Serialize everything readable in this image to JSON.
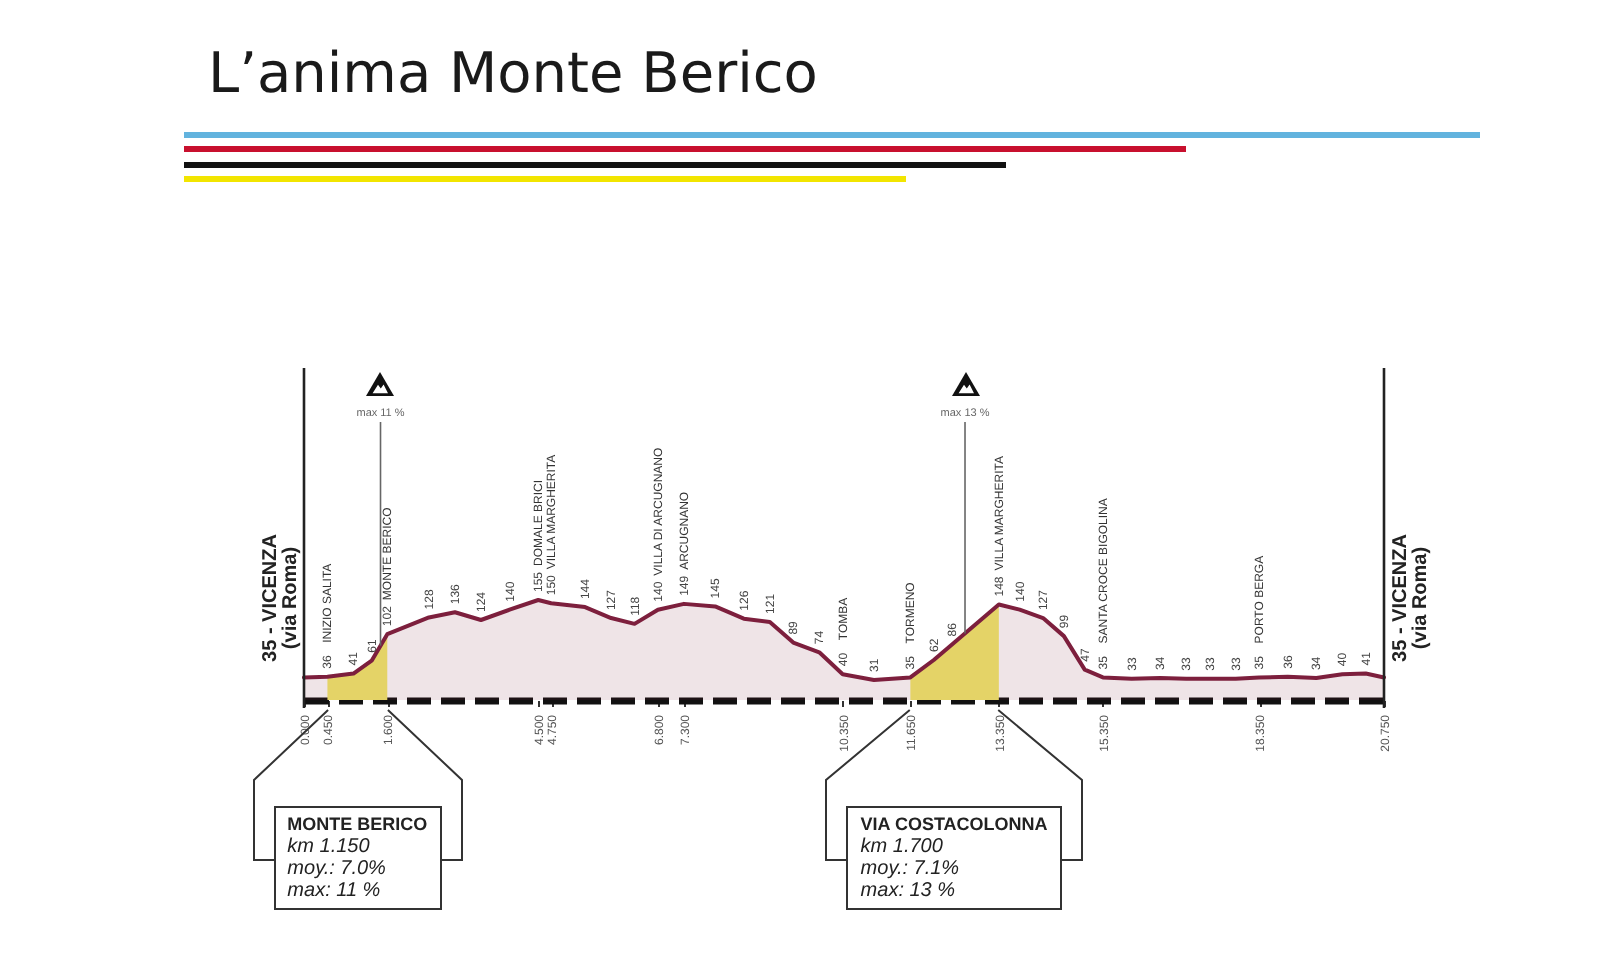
{
  "chart_data": {
    "type": "area",
    "title": "L’anima Monte Berico",
    "x": [
      0,
      0.45,
      0.95,
      1.3,
      1.6,
      2.4,
      2.9,
      3.4,
      3.95,
      4.5,
      4.75,
      5.4,
      5.9,
      6.35,
      6.8,
      7.3,
      7.9,
      8.45,
      8.95,
      9.4,
      9.9,
      10.35,
      10.95,
      11.65,
      12.1,
      12.45,
      13.35,
      13.75,
      14.2,
      14.6,
      15.0,
      15.35,
      15.9,
      16.45,
      16.95,
      17.4,
      17.9,
      18.35,
      18.9,
      19.45,
      19.95,
      20.4,
      20.75
    ],
    "values": [
      35,
      36,
      41,
      61,
      102,
      128,
      136,
      124,
      140,
      155,
      150,
      144,
      127,
      118,
      140,
      149,
      145,
      126,
      121,
      89,
      74,
      40,
      31,
      35,
      62,
      86,
      148,
      140,
      127,
      99,
      47,
      35,
      33,
      34,
      33,
      33,
      33,
      35,
      36,
      34,
      40,
      41,
      35
    ],
    "value_labels": [
      null,
      "36",
      "41",
      "61",
      "102",
      "128",
      "136",
      "124",
      "140",
      "155",
      "150",
      "144",
      "127",
      "118",
      "140",
      "149",
      "145",
      "126",
      "121",
      "89",
      "74",
      "40",
      "31",
      "35",
      "62",
      "86",
      "148",
      "140",
      "127",
      "99",
      "47",
      "35",
      "33",
      "34",
      "33",
      "33",
      "33",
      "35",
      "36",
      "34",
      "40",
      "41",
      null
    ],
    "color": "#7d1f3d",
    "xlim": [
      0,
      20.75
    ],
    "xticks": [
      {
        "value": 0,
        "label": "0.000"
      },
      {
        "value": 0.45,
        "label": "0.450"
      },
      {
        "value": 1.6,
        "label": "1.600"
      },
      {
        "value": 4.5,
        "label": "4.500"
      },
      {
        "value": 4.75,
        "label": "4.750"
      },
      {
        "value": 6.8,
        "label": "6.800"
      },
      {
        "value": 7.3,
        "label": "7.300"
      },
      {
        "value": 10.35,
        "label": "10.350"
      },
      {
        "value": 11.65,
        "label": "11.650"
      },
      {
        "value": 13.35,
        "label": "13.350"
      },
      {
        "value": 15.35,
        "label": "15.350"
      },
      {
        "value": 18.35,
        "label": "18.350"
      },
      {
        "value": 20.75,
        "label": "20.750"
      }
    ],
    "annotations": [
      {
        "text": "INIZIO SALITA",
        "x": 0.45,
        "y": 36
      },
      {
        "text": "MONTE BERICO",
        "x": 1.6,
        "y": 102
      },
      {
        "text": "DOMALE BRICI",
        "x": 4.5,
        "y": 155
      },
      {
        "text": "VILLA MARGHERITA",
        "x": 4.75,
        "y": 150
      },
      {
        "text": "VILLA DI ARCUGNANO",
        "x": 6.8,
        "y": 140
      },
      {
        "text": "ARCUGNANO",
        "x": 7.3,
        "y": 149
      },
      {
        "text": "TOMBA",
        "x": 10.35,
        "y": 40
      },
      {
        "text": "TORMENO",
        "x": 11.65,
        "y": 35
      },
      {
        "text": "VILLA MARGHERITA",
        "x": 13.35,
        "y": 148
      },
      {
        "text": "SANTA CROCE BIGOLINA",
        "x": 15.35,
        "y": 35
      },
      {
        "text": "PORTO BERGA",
        "x": 18.35,
        "y": 35
      }
    ],
    "ref_lines": [
      {
        "axis": "x",
        "value": 0,
        "label": "35 - VICENZA\n(via Roma)",
        "color": "#222222"
      },
      {
        "axis": "x",
        "value": 20.75,
        "label": "35 - VICENZA\n(via Roma)",
        "color": "#222222"
      },
      {
        "axis": "x",
        "value": 1.47,
        "label": "max 11 %",
        "color": "#666666"
      },
      {
        "axis": "x",
        "value": 12.7,
        "label": "max 13 %",
        "color": "#666666"
      }
    ],
    "bands": [
      {
        "axis": "x",
        "from": 0.45,
        "to": 1.6,
        "label": "MONTE BERICO\nkm 1.150\nmoy.: 7.0%\nmax: 11 %",
        "color": "#f3ec6e"
      },
      {
        "axis": "x",
        "from": 11.65,
        "to": 13.35,
        "label": "VIA COSTACOLONNA\nkm 1.700\nmoy.: 7.1%\nmax: 13 %",
        "color": "#f3ec6e"
      }
    ]
  }
}
